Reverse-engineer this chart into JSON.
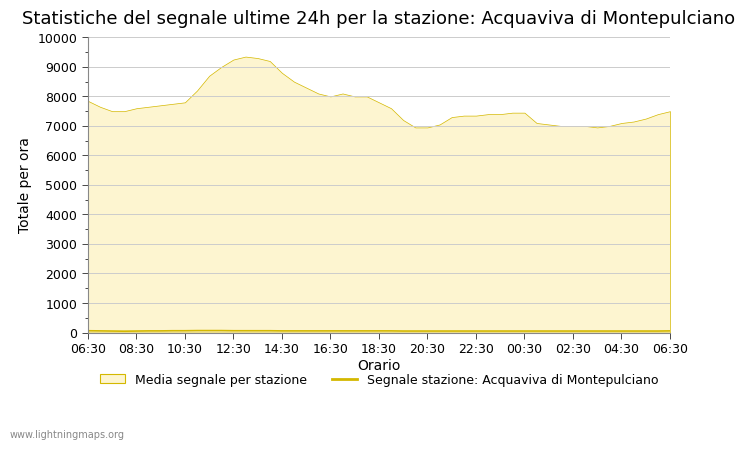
{
  "title": "Statistiche del segnale ultime 24h per la stazione: Acquaviva di Montepulciano",
  "xlabel": "Orario",
  "ylabel": "Totale per ora",
  "xlim": [
    0,
    24
  ],
  "ylim": [
    0,
    10000
  ],
  "yticks": [
    0,
    1000,
    2000,
    3000,
    4000,
    5000,
    6000,
    7000,
    8000,
    9000,
    10000
  ],
  "xtick_labels": [
    "06:30",
    "08:30",
    "10:30",
    "12:30",
    "14:30",
    "16:30",
    "18:30",
    "20:30",
    "22:30",
    "00:30",
    "02:30",
    "04:30",
    "06:30"
  ],
  "fill_color": "#fdf5d0",
  "fill_edge_color": "#d4b800",
  "line_color": "#d4b800",
  "background_color": "#ffffff",
  "grid_color": "#cccccc",
  "title_fontsize": 13,
  "axis_label_fontsize": 10,
  "tick_fontsize": 9,
  "watermark": "www.lightningmaps.org",
  "legend_fill_label": "Media segnale per stazione",
  "legend_line_label": "Segnale stazione: Acquaviva di Montepulciano",
  "x_values": [
    0,
    0.5,
    1,
    1.5,
    2,
    2.5,
    3,
    3.5,
    4,
    4.5,
    5,
    5.5,
    6,
    6.5,
    7,
    7.5,
    8,
    8.5,
    9,
    9.5,
    10,
    10.5,
    11,
    11.5,
    12,
    12.5,
    13,
    13.5,
    14,
    14.5,
    15,
    15.5,
    16,
    16.5,
    17,
    17.5,
    18,
    18.5,
    19,
    19.5,
    20,
    20.5,
    21,
    21.5,
    22,
    22.5,
    23,
    23.5,
    24
  ],
  "fill_values": [
    7850,
    7650,
    7500,
    7500,
    7600,
    7650,
    7700,
    7750,
    7800,
    8200,
    8700,
    9000,
    9250,
    9350,
    9300,
    9200,
    8800,
    8500,
    8300,
    8100,
    8000,
    8100,
    8000,
    8000,
    7800,
    7600,
    7200,
    6950,
    6950,
    7050,
    7300,
    7350,
    7350,
    7400,
    7400,
    7450,
    7450,
    7100,
    7050,
    7000,
    7000,
    7000,
    6950,
    7000,
    7100,
    7150,
    7250,
    7400,
    7500
  ],
  "line_values": [
    60,
    55,
    50,
    45,
    50,
    55,
    55,
    60,
    60,
    65,
    65,
    65,
    60,
    60,
    60,
    60,
    55,
    55,
    55,
    55,
    55,
    55,
    55,
    55,
    55,
    55,
    50,
    50,
    50,
    50,
    50,
    50,
    50,
    50,
    50,
    50,
    50,
    50,
    50,
    50,
    50,
    50,
    50,
    50,
    50,
    50,
    50,
    50,
    55
  ]
}
